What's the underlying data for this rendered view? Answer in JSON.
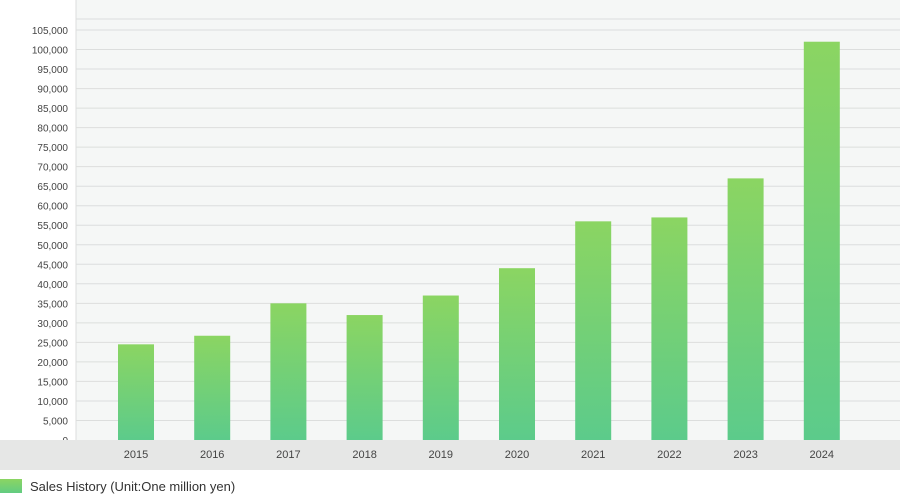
{
  "chart_data": {
    "type": "bar",
    "categories": [
      "2015",
      "2016",
      "2017",
      "2018",
      "2019",
      "2020",
      "2021",
      "2022",
      "2023",
      "2024"
    ],
    "series": [
      {
        "name": "Sales History (Unit:One million yen)",
        "values": [
          24500,
          26700,
          35000,
          32000,
          37000,
          44000,
          56000,
          57000,
          67000,
          102000
        ]
      }
    ],
    "ylim": [
      0,
      105000
    ],
    "ytick_step": 5000,
    "ytick_labels": [
      "0",
      "5,000",
      "10,000",
      "15,000",
      "20,000",
      "25,000",
      "30,000",
      "35,000",
      "40,000",
      "45,000",
      "50,000",
      "55,000",
      "60,000",
      "65,000",
      "70,000",
      "75,000",
      "80,000",
      "85,000",
      "90,000",
      "95,000",
      "100,000",
      "105,000"
    ],
    "grid": true,
    "legend_position": "bottom-left",
    "colors": {
      "bar_top": "#8bd562",
      "bar_bottom": "#5ccb8b",
      "plot_background": "#f5f7f6",
      "grid": "#dcdedd",
      "axis_band": "#e6e7e6"
    }
  },
  "legend": {
    "label": "Sales History (Unit:One million yen)"
  }
}
